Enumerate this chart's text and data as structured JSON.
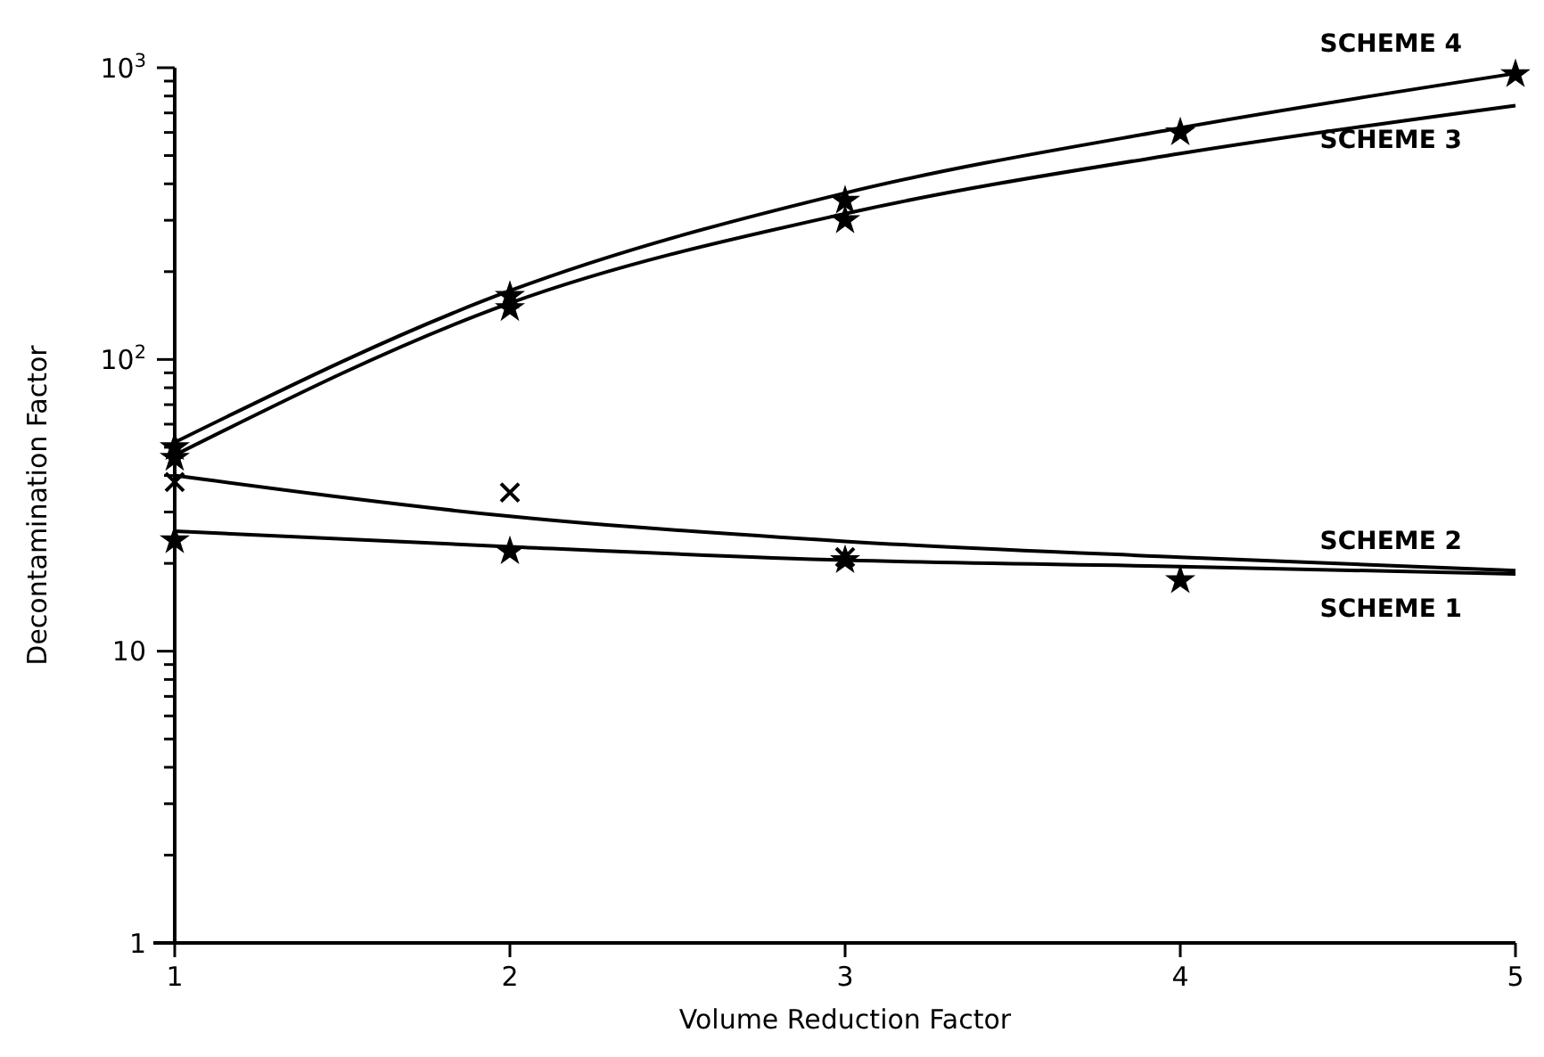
{
  "chart_data": {
    "type": "line",
    "xlabel": "Volume Reduction Factor",
    "ylabel": "Decontamination Factor",
    "log": "y",
    "grid": false,
    "xlim": [
      1,
      5
    ],
    "xticks": [
      1,
      2,
      3,
      4,
      5
    ],
    "ylim": [
      1,
      1000
    ],
    "yticks": [
      1,
      {
        "value": 2,
        "label": null
      },
      {
        "value": 3,
        "label": null
      },
      {
        "value": 4,
        "label": null
      },
      {
        "value": 5,
        "label": null
      },
      {
        "value": 6,
        "label": null
      },
      {
        "value": 7,
        "label": null
      },
      {
        "value": 8,
        "label": null
      },
      {
        "value": 9,
        "label": null
      },
      10,
      {
        "value": 20,
        "label": null
      },
      {
        "value": 30,
        "label": null
      },
      {
        "value": 40,
        "label": null
      },
      {
        "value": 50,
        "label": null
      },
      {
        "value": 60,
        "label": null
      },
      {
        "value": 70,
        "label": null
      },
      {
        "value": 80,
        "label": null
      },
      {
        "value": 90,
        "label": null
      },
      {
        "value": 100,
        "label": "10$^{2}$"
      },
      {
        "value": 200,
        "label": null
      },
      {
        "value": 300,
        "label": null
      },
      {
        "value": 400,
        "label": null
      },
      {
        "value": 500,
        "label": null
      },
      {
        "value": 600,
        "label": null
      },
      {
        "value": 700,
        "label": null
      },
      {
        "value": 800,
        "label": null
      },
      {
        "value": 900,
        "label": null
      },
      {
        "value": 1000,
        "label": "10$^{3}$"
      }
    ],
    "series": [
      {
        "name": "SCHEME 1",
        "marker": "none",
        "color": "#000000",
        "x": [
          1,
          2,
          3,
          4,
          5
        ],
        "values": [
          25.8,
          22.8,
          20.5,
          19.5,
          18.4
        ]
      },
      {
        "name": "SCHEME 2",
        "marker": "none",
        "color": "#000000",
        "x": [
          1,
          2,
          3,
          4,
          5
        ],
        "values": [
          40,
          29,
          23.8,
          21,
          18.9
        ]
      },
      {
        "name": "SCHEME 3",
        "marker": "none",
        "color": "#000000",
        "x": [
          1,
          2,
          3,
          4,
          5
        ],
        "values": [
          47,
          156,
          316,
          508,
          742
        ]
      },
      {
        "name": "SCHEME 4",
        "marker": "none",
        "color": "#000000",
        "x": [
          1,
          2,
          3,
          4,
          5
        ],
        "values": [
          52,
          172,
          372,
          622,
          956
        ]
      },
      {
        "type": "scatter",
        "marker": "star",
        "color": "#000000",
        "x": [
          1,
          1,
          2,
          2,
          3,
          3,
          4,
          5,
          1,
          2,
          3,
          4
        ],
        "values": [
          50,
          46,
          165,
          150,
          350,
          300,
          600,
          950,
          24,
          22,
          20.5,
          17.5
        ]
      },
      {
        "type": "scatter",
        "marker": "cross",
        "color": "#000000",
        "x": [
          1,
          2,
          3
        ],
        "values": [
          38,
          35,
          21
        ]
      }
    ]
  }
}
